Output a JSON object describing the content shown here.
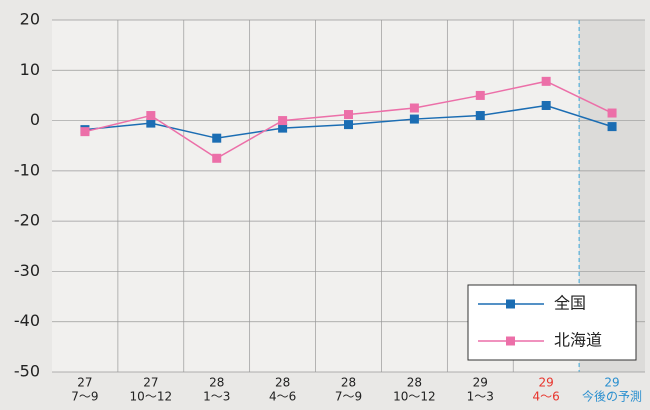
{
  "chart_data": {
    "type": "line",
    "categories": [
      [
        "27",
        "7〜9"
      ],
      [
        "27",
        "10〜12"
      ],
      [
        "28",
        "1〜3"
      ],
      [
        "28",
        "4〜6"
      ],
      [
        "28",
        "7〜9"
      ],
      [
        "28",
        "10〜12"
      ],
      [
        "29",
        "1〜3"
      ],
      [
        "29",
        "4〜6"
      ],
      [
        "29",
        "今後の予測"
      ]
    ],
    "category_colors": [
      "#222",
      "#222",
      "#222",
      "#222",
      "#222",
      "#222",
      "#222",
      "#e8342c",
      "#2a8fcf"
    ],
    "shaded_categories": [
      8
    ],
    "series": [
      {
        "name": "全国",
        "color": "#1b6db3",
        "values": [
          -1.8,
          -0.5,
          -3.5,
          -1.5,
          -0.8,
          0.3,
          1.0,
          3.0,
          -1.2
        ]
      },
      {
        "name": "北海道",
        "color": "#ec6fa8",
        "values": [
          -2.2,
          1.0,
          -7.5,
          0.0,
          1.2,
          2.5,
          5.0,
          7.8,
          1.5
        ]
      }
    ],
    "ylim": [
      -50,
      20
    ],
    "yticks": [
      -50,
      -40,
      -30,
      -20,
      -10,
      0,
      10,
      20
    ],
    "grid": true,
    "legend": "lower right"
  }
}
